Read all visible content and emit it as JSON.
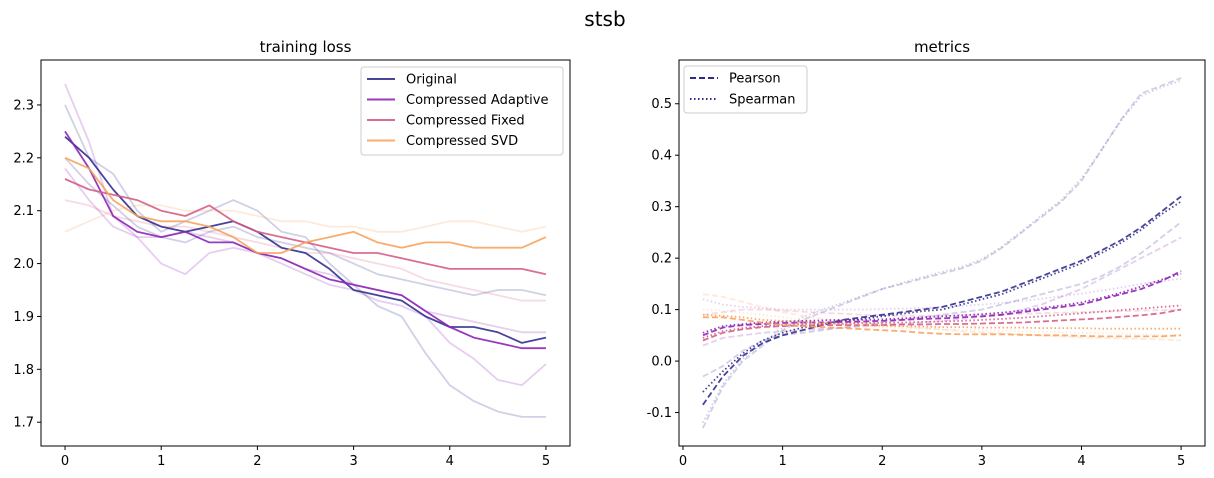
{
  "suptitle": "stsb",
  "colors": {
    "original": "#2e2a8c",
    "adaptive": "#8b1fb5",
    "fixed": "#d45a82",
    "svd": "#f7a05a"
  },
  "chart_data": [
    {
      "type": "line",
      "title": "training loss",
      "xlabel": "",
      "ylabel": "",
      "xlim": [
        -0.25,
        5.25
      ],
      "ylim": [
        1.655,
        2.385
      ],
      "xticks": [
        "0",
        "1",
        "2",
        "3",
        "4",
        "5"
      ],
      "yticks": [
        "1.7",
        "1.8",
        "1.9",
        "2.0",
        "2.1",
        "2.2",
        "2.3"
      ],
      "legend_position": "top-right",
      "legend": [
        "Original",
        "Compressed Adaptive",
        "Compressed Fixed",
        "Compressed SVD"
      ],
      "series": [
        {
          "name": "Original",
          "color_key": "original",
          "x": [
            0,
            0.25,
            0.5,
            0.75,
            1.0,
            1.25,
            1.5,
            1.75,
            2.0,
            2.25,
            2.5,
            2.75,
            3.0,
            3.25,
            3.5,
            3.75,
            4.0,
            4.25,
            4.5,
            4.75,
            5.0
          ],
          "y": [
            2.24,
            2.2,
            2.14,
            2.09,
            2.07,
            2.06,
            2.07,
            2.08,
            2.06,
            2.03,
            2.02,
            1.99,
            1.95,
            1.94,
            1.93,
            1.9,
            1.88,
            1.88,
            1.87,
            1.85,
            1.86
          ]
        },
        {
          "name": "Compressed Adaptive",
          "color_key": "adaptive",
          "x": [
            0,
            0.25,
            0.5,
            0.75,
            1.0,
            1.25,
            1.5,
            1.75,
            2.0,
            2.25,
            2.5,
            2.75,
            3.0,
            3.25,
            3.5,
            3.75,
            4.0,
            4.25,
            4.5,
            4.75,
            5.0
          ],
          "y": [
            2.25,
            2.18,
            2.09,
            2.06,
            2.05,
            2.06,
            2.04,
            2.04,
            2.02,
            2.01,
            1.99,
            1.97,
            1.96,
            1.95,
            1.94,
            1.91,
            1.88,
            1.86,
            1.85,
            1.84,
            1.84
          ]
        },
        {
          "name": "Compressed Fixed",
          "color_key": "fixed",
          "x": [
            0,
            0.25,
            0.5,
            0.75,
            1.0,
            1.25,
            1.5,
            1.75,
            2.0,
            2.25,
            2.5,
            2.75,
            3.0,
            3.25,
            3.5,
            3.75,
            4.0,
            4.25,
            4.5,
            4.75,
            5.0
          ],
          "y": [
            2.16,
            2.14,
            2.13,
            2.12,
            2.1,
            2.09,
            2.11,
            2.08,
            2.06,
            2.05,
            2.04,
            2.03,
            2.02,
            2.02,
            2.01,
            2.0,
            1.99,
            1.99,
            1.99,
            1.99,
            1.98
          ]
        },
        {
          "name": "Compressed SVD",
          "color_key": "svd",
          "x": [
            0,
            0.25,
            0.5,
            0.75,
            1.0,
            1.25,
            1.5,
            1.75,
            2.0,
            2.25,
            2.5,
            2.75,
            3.0,
            3.25,
            3.5,
            3.75,
            4.0,
            4.25,
            4.5,
            4.75,
            5.0
          ],
          "y": [
            2.2,
            2.18,
            2.12,
            2.09,
            2.08,
            2.08,
            2.07,
            2.05,
            2.02,
            2.02,
            2.04,
            2.05,
            2.06,
            2.04,
            2.03,
            2.04,
            2.04,
            2.03,
            2.03,
            2.03,
            2.05
          ]
        }
      ],
      "faint_runs": [
        {
          "color_key": "original",
          "y": [
            2.3,
            2.2,
            2.17,
            2.1,
            2.06,
            2.08,
            2.1,
            2.12,
            2.1,
            2.06,
            2.05,
            2.0,
            1.96,
            1.92,
            1.9,
            1.83,
            1.77,
            1.74,
            1.72,
            1.71,
            1.71
          ]
        },
        {
          "color_key": "original",
          "y": [
            2.2,
            2.15,
            2.11,
            2.07,
            2.05,
            2.04,
            2.06,
            2.07,
            2.05,
            2.04,
            2.03,
            2.02,
            2.0,
            1.98,
            1.97,
            1.96,
            1.95,
            1.94,
            1.95,
            1.95,
            1.94
          ]
        },
        {
          "color_key": "adaptive",
          "y": [
            2.34,
            2.23,
            2.09,
            2.05,
            2.0,
            1.98,
            2.02,
            2.03,
            2.02,
            2.0,
            1.98,
            1.96,
            1.95,
            1.93,
            1.92,
            1.9,
            1.85,
            1.82,
            1.78,
            1.77,
            1.81
          ]
        },
        {
          "color_key": "adaptive",
          "y": [
            2.18,
            2.12,
            2.07,
            2.05,
            2.05,
            2.06,
            2.05,
            2.04,
            2.02,
            2.01,
            1.99,
            1.98,
            1.96,
            1.95,
            1.94,
            1.91,
            1.9,
            1.89,
            1.88,
            1.87,
            1.87
          ]
        },
        {
          "color_key": "fixed",
          "y": [
            2.12,
            2.11,
            2.09,
            2.08,
            2.07,
            2.07,
            2.06,
            2.05,
            2.04,
            2.03,
            2.02,
            2.02,
            2.01,
            2.0,
            1.99,
            1.97,
            1.96,
            1.95,
            1.94,
            1.93,
            1.93
          ]
        },
        {
          "color_key": "svd",
          "y": [
            2.06,
            2.08,
            2.1,
            2.11,
            2.11,
            2.1,
            2.1,
            2.1,
            2.09,
            2.08,
            2.08,
            2.07,
            2.07,
            2.06,
            2.06,
            2.07,
            2.08,
            2.08,
            2.07,
            2.06,
            2.07
          ]
        }
      ]
    },
    {
      "type": "line",
      "title": "metrics",
      "xlabel": "",
      "ylabel": "",
      "xlim": [
        -0.04,
        5.24
      ],
      "ylim": [
        -0.165,
        0.585
      ],
      "xticks": [
        "0",
        "1",
        "2",
        "3",
        "4",
        "5"
      ],
      "yticks": [
        "-0.1",
        "0.0",
        "0.1",
        "0.2",
        "0.3",
        "0.4",
        "0.5"
      ],
      "legend_position": "top-left",
      "legend": [
        "Pearson",
        "Spearman"
      ],
      "x": [
        0.2,
        0.4,
        0.6,
        0.8,
        1.0,
        1.2,
        1.4,
        1.6,
        1.8,
        2.0,
        2.2,
        2.4,
        2.6,
        2.8,
        3.0,
        3.2,
        3.4,
        3.6,
        3.8,
        4.0,
        4.2,
        4.4,
        4.6,
        4.8,
        5.0
      ],
      "series": [
        {
          "name": "Original Pearson",
          "color_key": "original",
          "style": "dashed",
          "y": [
            -0.085,
            -0.03,
            0.01,
            0.035,
            0.05,
            0.06,
            0.07,
            0.08,
            0.085,
            0.09,
            0.095,
            0.1,
            0.105,
            0.115,
            0.125,
            0.135,
            0.15,
            0.165,
            0.18,
            0.195,
            0.215,
            0.235,
            0.26,
            0.29,
            0.32
          ]
        },
        {
          "name": "Original Spearman",
          "color_key": "original",
          "style": "dotted",
          "y": [
            -0.06,
            -0.02,
            0.015,
            0.04,
            0.055,
            0.065,
            0.072,
            0.078,
            0.082,
            0.087,
            0.092,
            0.097,
            0.1,
            0.11,
            0.12,
            0.13,
            0.145,
            0.16,
            0.175,
            0.19,
            0.21,
            0.23,
            0.255,
            0.285,
            0.31
          ]
        },
        {
          "name": "Adaptive Pearson",
          "color_key": "adaptive",
          "style": "dashed",
          "y": [
            0.05,
            0.065,
            0.07,
            0.072,
            0.074,
            0.075,
            0.075,
            0.076,
            0.077,
            0.078,
            0.08,
            0.082,
            0.083,
            0.085,
            0.087,
            0.09,
            0.095,
            0.1,
            0.105,
            0.11,
            0.12,
            0.13,
            0.14,
            0.155,
            0.175
          ]
        },
        {
          "name": "Adaptive Spearman",
          "color_key": "adaptive",
          "style": "dotted",
          "y": [
            0.055,
            0.068,
            0.072,
            0.075,
            0.077,
            0.078,
            0.079,
            0.08,
            0.08,
            0.081,
            0.083,
            0.085,
            0.087,
            0.089,
            0.091,
            0.094,
            0.098,
            0.103,
            0.108,
            0.114,
            0.123,
            0.133,
            0.145,
            0.158,
            0.17
          ]
        },
        {
          "name": "Fixed Pearson",
          "color_key": "fixed",
          "style": "dashed",
          "y": [
            0.04,
            0.055,
            0.062,
            0.066,
            0.068,
            0.069,
            0.07,
            0.07,
            0.07,
            0.07,
            0.071,
            0.071,
            0.072,
            0.072,
            0.073,
            0.074,
            0.075,
            0.077,
            0.079,
            0.081,
            0.083,
            0.086,
            0.089,
            0.093,
            0.1
          ]
        },
        {
          "name": "Fixed Spearman",
          "color_key": "fixed",
          "style": "dotted",
          "y": [
            0.045,
            0.058,
            0.064,
            0.068,
            0.07,
            0.072,
            0.073,
            0.073,
            0.074,
            0.074,
            0.075,
            0.076,
            0.077,
            0.078,
            0.08,
            0.082,
            0.084,
            0.087,
            0.09,
            0.093,
            0.096,
            0.099,
            0.102,
            0.105,
            0.108
          ]
        },
        {
          "name": "SVD Pearson",
          "color_key": "svd",
          "style": "dashed",
          "y": [
            0.085,
            0.085,
            0.08,
            0.075,
            0.07,
            0.068,
            0.066,
            0.064,
            0.062,
            0.06,
            0.058,
            0.055,
            0.053,
            0.052,
            0.052,
            0.052,
            0.051,
            0.05,
            0.05,
            0.049,
            0.048,
            0.048,
            0.048,
            0.048,
            0.05
          ]
        },
        {
          "name": "SVD Spearman",
          "color_key": "svd",
          "style": "dotted",
          "y": [
            0.09,
            0.088,
            0.085,
            0.08,
            0.078,
            0.076,
            0.074,
            0.072,
            0.07,
            0.069,
            0.068,
            0.067,
            0.066,
            0.066,
            0.065,
            0.065,
            0.065,
            0.064,
            0.064,
            0.064,
            0.063,
            0.063,
            0.063,
            0.063,
            0.063
          ]
        }
      ],
      "faint_runs": [
        {
          "color_key": "original",
          "style": "dashed",
          "y": [
            -0.13,
            -0.05,
            0.0,
            0.03,
            0.06,
            0.08,
            0.095,
            0.11,
            0.125,
            0.14,
            0.15,
            0.16,
            0.17,
            0.18,
            0.195,
            0.22,
            0.25,
            0.28,
            0.31,
            0.35,
            0.41,
            0.47,
            0.52,
            0.535,
            0.55
          ]
        },
        {
          "color_key": "original",
          "style": "dotted",
          "y": [
            -0.12,
            -0.045,
            0.005,
            0.035,
            0.065,
            0.085,
            0.1,
            0.113,
            0.127,
            0.14,
            0.152,
            0.163,
            0.173,
            0.183,
            0.198,
            0.222,
            0.252,
            0.283,
            0.313,
            0.355,
            0.41,
            0.468,
            0.515,
            0.532,
            0.545
          ]
        },
        {
          "color_key": "original",
          "style": "dashed",
          "y": [
            -0.03,
            -0.01,
            0.02,
            0.04,
            0.05,
            0.055,
            0.06,
            0.065,
            0.07,
            0.075,
            0.08,
            0.085,
            0.09,
            0.095,
            0.1,
            0.11,
            0.12,
            0.13,
            0.14,
            0.15,
            0.165,
            0.185,
            0.21,
            0.24,
            0.27
          ]
        },
        {
          "color_key": "adaptive",
          "style": "dashed",
          "y": [
            0.03,
            0.045,
            0.05,
            0.055,
            0.058,
            0.06,
            0.063,
            0.065,
            0.067,
            0.07,
            0.072,
            0.075,
            0.078,
            0.082,
            0.086,
            0.09,
            0.1,
            0.11,
            0.125,
            0.14,
            0.16,
            0.18,
            0.2,
            0.22,
            0.24
          ]
        },
        {
          "color_key": "adaptive",
          "style": "dotted",
          "y": [
            0.12,
            0.11,
            0.105,
            0.103,
            0.1,
            0.1,
            0.1,
            0.1,
            0.1,
            0.101,
            0.102,
            0.103,
            0.105,
            0.107,
            0.11,
            0.113,
            0.117,
            0.121,
            0.126,
            0.131,
            0.137,
            0.143,
            0.15,
            0.155,
            0.16
          ]
        },
        {
          "color_key": "fixed",
          "style": "dashed",
          "y": [
            0.09,
            0.095,
            0.1,
            0.1,
            0.098,
            0.096,
            0.094,
            0.092,
            0.09,
            0.089,
            0.088,
            0.088,
            0.088,
            0.089,
            0.09,
            0.091,
            0.092,
            0.093,
            0.094,
            0.095,
            0.096,
            0.097,
            0.098,
            0.099,
            0.1
          ]
        },
        {
          "color_key": "svd",
          "style": "dashed",
          "y": [
            0.13,
            0.125,
            0.115,
            0.105,
            0.095,
            0.088,
            0.082,
            0.078,
            0.074,
            0.07,
            0.067,
            0.064,
            0.061,
            0.058,
            0.056,
            0.054,
            0.052,
            0.05,
            0.048,
            0.046,
            0.045,
            0.044,
            0.043,
            0.042,
            0.04
          ]
        },
        {
          "color_key": "svd",
          "style": "dotted",
          "y": [
            0.1,
            0.098,
            0.094,
            0.09,
            0.085,
            0.08,
            0.076,
            0.072,
            0.068,
            0.066,
            0.064,
            0.063,
            0.062,
            0.061,
            0.06,
            0.059,
            0.058,
            0.057,
            0.056,
            0.055,
            0.054,
            0.053,
            0.052,
            0.051,
            0.05
          ]
        }
      ]
    }
  ]
}
